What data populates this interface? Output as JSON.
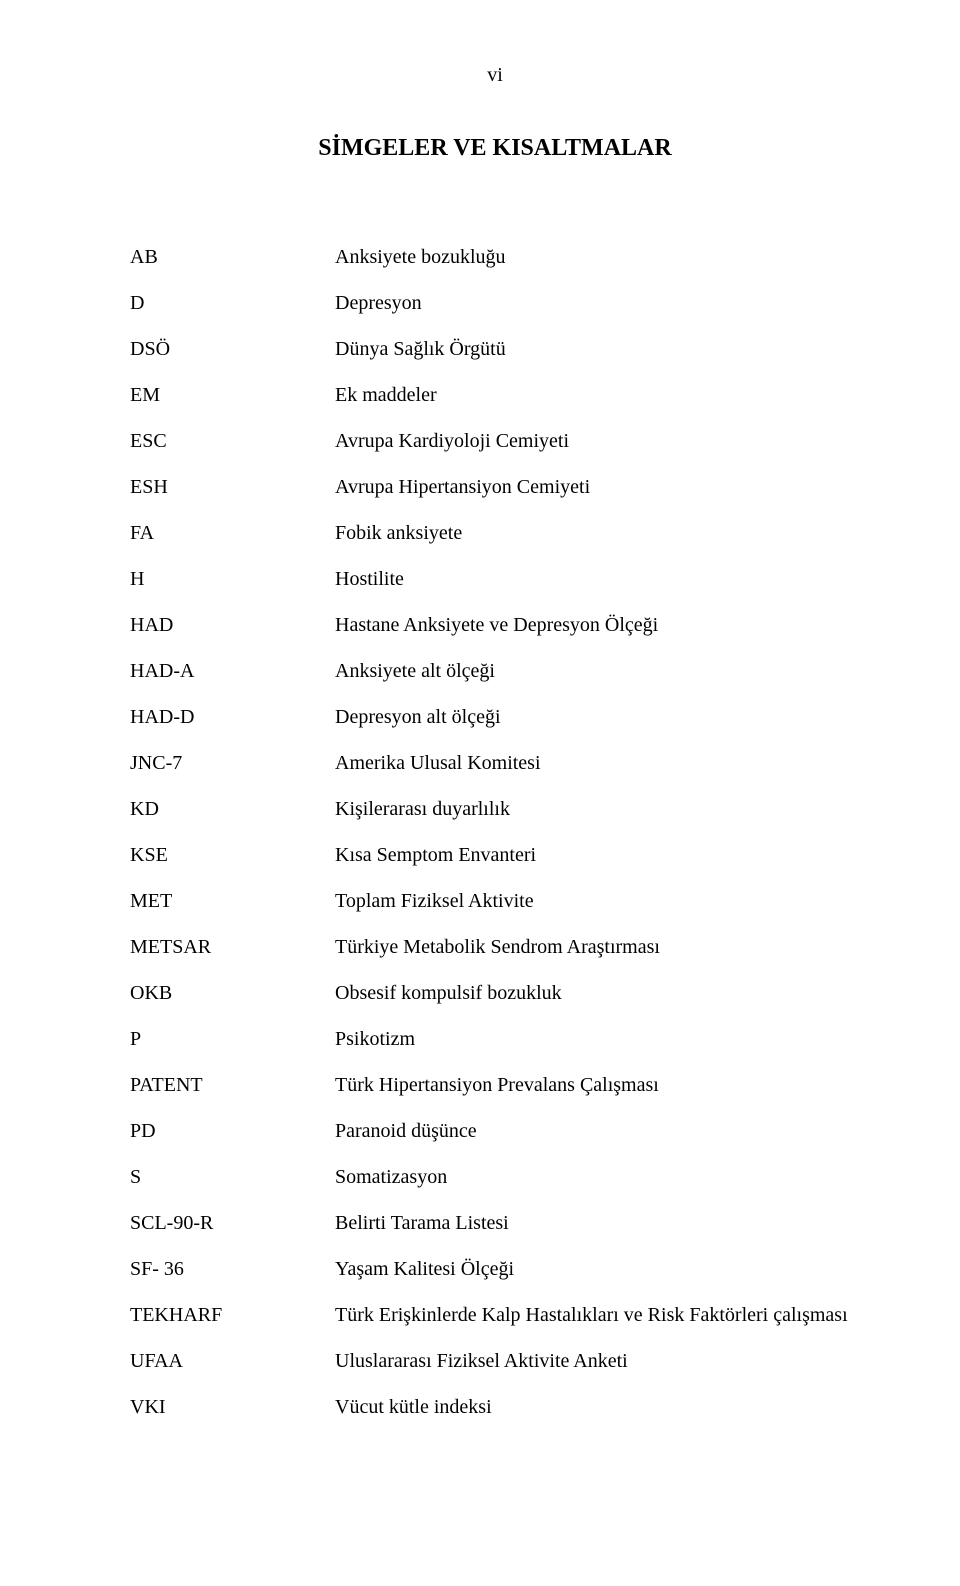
{
  "page_number": "vi",
  "title": "SİMGELER VE KISALTMALAR",
  "abbreviations": [
    {
      "code": "AB",
      "desc": "Anksiyete bozukluğu"
    },
    {
      "code": "D",
      "desc": "Depresyon"
    },
    {
      "code": "DSÖ",
      "desc": "Dünya Sağlık Örgütü"
    },
    {
      "code": "EM",
      "desc": "Ek maddeler"
    },
    {
      "code": "ESC",
      "desc": "Avrupa Kardiyoloji Cemiyeti"
    },
    {
      "code": "ESH",
      "desc": "Avrupa Hipertansiyon Cemiyeti"
    },
    {
      "code": "FA",
      "desc": "Fobik anksiyete"
    },
    {
      "code": "H",
      "desc": "Hostilite"
    },
    {
      "code": "HAD",
      "desc": "Hastane Anksiyete ve Depresyon Ölçeği"
    },
    {
      "code": "HAD-A",
      "desc": "Anksiyete alt ölçeği"
    },
    {
      "code": "HAD-D",
      "desc": "Depresyon alt ölçeği"
    },
    {
      "code": "JNC-7",
      "desc": "Amerika Ulusal Komitesi"
    },
    {
      "code": "KD",
      "desc": "Kişilerarası duyarlılık"
    },
    {
      "code": "KSE",
      "desc": "Kısa Semptom Envanteri"
    },
    {
      "code": "MET",
      "desc": "Toplam Fiziksel Aktivite"
    },
    {
      "code": "METSAR",
      "desc": "Türkiye Metabolik Sendrom Araştırması"
    },
    {
      "code": "OKB",
      "desc": "Obsesif kompulsif bozukluk"
    },
    {
      "code": "P",
      "desc": "Psikotizm"
    },
    {
      "code": "PATENT",
      "desc": "Türk Hipertansiyon Prevalans Çalışması"
    },
    {
      "code": "PD",
      "desc": "Paranoid düşünce"
    },
    {
      "code": "S",
      "desc": "Somatizasyon"
    },
    {
      "code": "SCL-90-R",
      "desc": "Belirti Tarama Listesi"
    },
    {
      "code": "SF- 36",
      "desc": "Yaşam Kalitesi Ölçeği"
    },
    {
      "code": "TEKHARF",
      "desc": "Türk Erişkinlerde Kalp Hastalıkları ve Risk Faktörleri çalışması"
    },
    {
      "code": "UFAA",
      "desc": "Uluslararası Fiziksel Aktivite Anketi"
    },
    {
      "code": "VKI",
      "desc": "Vücut kütle indeksi"
    }
  ]
}
